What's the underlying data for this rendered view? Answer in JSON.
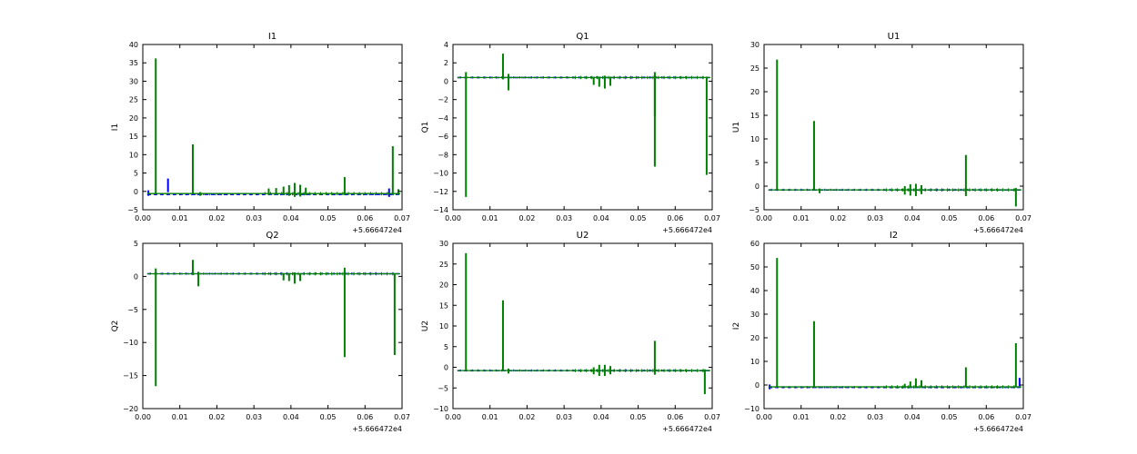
{
  "figure": {
    "background": "#ffffff",
    "series_colors": {
      "A": "#0000ff",
      "B": "#008000"
    }
  },
  "chart_data": [
    {
      "type": "line",
      "title": "I1",
      "ylabel": "I1",
      "offset_text": "+5.666472e4",
      "xlim": [
        0.0,
        0.07
      ],
      "ylim": [
        -5,
        40
      ],
      "xticks": [
        "0.00",
        "0.01",
        "0.02",
        "0.03",
        "0.04",
        "0.05",
        "0.06",
        "0.07"
      ],
      "yticks": [
        "−5",
        "0",
        "5",
        "10",
        "15",
        "20",
        "25",
        "30",
        "35",
        "40"
      ],
      "grid": false,
      "baseline": {
        "A": -0.8,
        "B": -0.6
      },
      "series": [
        {
          "key": "A",
          "spikes": [
            [
              0.0068,
              3.5,
              -0.2
            ],
            [
              0.0015,
              0.3,
              -1.2
            ],
            [
              0.0665,
              0.8,
              -1.5
            ]
          ]
        },
        {
          "key": "B",
          "spikes": [
            [
              0.0035,
              36.2,
              -0.7
            ],
            [
              0.0135,
              12.8,
              -0.8
            ],
            [
              0.0155,
              -0.2,
              -1.2
            ],
            [
              0.034,
              0.8,
              -1.0
            ],
            [
              0.036,
              0.9,
              -1.0
            ],
            [
              0.038,
              1.3,
              -1.0
            ],
            [
              0.0395,
              1.7,
              -1.2
            ],
            [
              0.041,
              2.3,
              -1.5
            ],
            [
              0.0425,
              1.8,
              -1.4
            ],
            [
              0.044,
              1.0,
              -1.0
            ],
            [
              0.0545,
              3.9,
              -1.0
            ],
            [
              0.0675,
              12.3,
              -1.0
            ],
            [
              0.069,
              0.6,
              -1.0
            ]
          ]
        }
      ]
    },
    {
      "type": "line",
      "title": "Q1",
      "ylabel": "Q1",
      "offset_text": "+5.666472e4",
      "xlim": [
        0.0,
        0.07
      ],
      "ylim": [
        -14,
        4
      ],
      "xticks": [
        "0.00",
        "0.01",
        "0.02",
        "0.03",
        "0.04",
        "0.05",
        "0.06",
        "0.07"
      ],
      "yticks": [
        "−14",
        "−12",
        "−10",
        "−8",
        "−6",
        "−4",
        "−2",
        "0",
        "2",
        "4"
      ],
      "grid": false,
      "baseline": {
        "A": 0.4,
        "B": 0.4
      },
      "series": [
        {
          "key": "A",
          "spikes": []
        },
        {
          "key": "B",
          "spikes": [
            [
              0.0035,
              1.0,
              -12.6
            ],
            [
              0.0135,
              3.0,
              0.2
            ],
            [
              0.015,
              0.8,
              -1.0
            ],
            [
              0.038,
              0.4,
              -0.4
            ],
            [
              0.0395,
              0.5,
              -0.6
            ],
            [
              0.041,
              0.6,
              -0.8
            ],
            [
              0.0425,
              0.5,
              -0.5
            ],
            [
              0.0545,
              1.0,
              -9.3
            ],
            [
              0.0545,
              0.6,
              -3.8
            ],
            [
              0.0685,
              0.5,
              -10.2
            ]
          ]
        }
      ]
    },
    {
      "type": "line",
      "title": "U1",
      "ylabel": "U1",
      "offset_text": "+5.666472e4",
      "xlim": [
        0.0,
        0.07
      ],
      "ylim": [
        -5,
        30
      ],
      "xticks": [
        "0.00",
        "0.01",
        "0.02",
        "0.03",
        "0.04",
        "0.05",
        "0.06",
        "0.07"
      ],
      "yticks": [
        "−5",
        "0",
        "5",
        "10",
        "15",
        "20",
        "25",
        "30"
      ],
      "grid": false,
      "baseline": {
        "A": -0.8,
        "B": -0.8
      },
      "series": [
        {
          "key": "A",
          "spikes": []
        },
        {
          "key": "B",
          "spikes": [
            [
              0.0035,
              26.8,
              -0.8
            ],
            [
              0.0135,
              13.8,
              -0.8
            ],
            [
              0.015,
              -0.5,
              -1.5
            ],
            [
              0.038,
              0.0,
              -1.8
            ],
            [
              0.0395,
              0.4,
              -2.0
            ],
            [
              0.041,
              0.5,
              -2.1
            ],
            [
              0.0425,
              0.2,
              -1.7
            ],
            [
              0.0545,
              6.6,
              -2.1
            ],
            [
              0.068,
              -0.4,
              -4.3
            ]
          ]
        }
      ]
    },
    {
      "type": "line",
      "title": "Q2",
      "ylabel": "Q2",
      "offset_text": "+5.666472e4",
      "xlim": [
        0.0,
        0.07
      ],
      "ylim": [
        -20,
        5
      ],
      "xticks": [
        "0.00",
        "0.01",
        "0.02",
        "0.03",
        "0.04",
        "0.05",
        "0.06",
        "0.07"
      ],
      "yticks": [
        "−20",
        "−15",
        "−10",
        "−5",
        "0",
        "5"
      ],
      "grid": false,
      "baseline": {
        "A": 0.4,
        "B": 0.4
      },
      "series": [
        {
          "key": "A",
          "spikes": []
        },
        {
          "key": "B",
          "spikes": [
            [
              0.0035,
              1.2,
              -16.6
            ],
            [
              0.0135,
              2.5,
              0.2
            ],
            [
              0.015,
              0.7,
              -1.5
            ],
            [
              0.038,
              0.4,
              -0.6
            ],
            [
              0.0395,
              0.4,
              -0.7
            ],
            [
              0.041,
              0.6,
              -1.1
            ],
            [
              0.0425,
              0.4,
              -0.7
            ],
            [
              0.0545,
              1.3,
              -12.2
            ],
            [
              0.068,
              0.5,
              -11.9
            ]
          ]
        }
      ]
    },
    {
      "type": "line",
      "title": "U2",
      "ylabel": "U2",
      "offset_text": "+5.666472e4",
      "xlim": [
        0.0,
        0.07
      ],
      "ylim": [
        -10,
        30
      ],
      "xticks": [
        "0.00",
        "0.01",
        "0.02",
        "0.03",
        "0.04",
        "0.05",
        "0.06",
        "0.07"
      ],
      "yticks": [
        "−10",
        "−5",
        "0",
        "5",
        "10",
        "15",
        "20",
        "25",
        "30"
      ],
      "grid": false,
      "baseline": {
        "A": -0.8,
        "B": -0.8
      },
      "series": [
        {
          "key": "A",
          "spikes": []
        },
        {
          "key": "B",
          "spikes": [
            [
              0.0035,
              27.6,
              -0.8
            ],
            [
              0.0135,
              16.2,
              -0.8
            ],
            [
              0.015,
              -0.3,
              -1.5
            ],
            [
              0.038,
              0.0,
              -1.7
            ],
            [
              0.0395,
              0.6,
              -2.1
            ],
            [
              0.041,
              0.6,
              -2.1
            ],
            [
              0.0425,
              0.3,
              -1.7
            ],
            [
              0.0545,
              6.4,
              -1.8
            ],
            [
              0.068,
              -0.5,
              -6.5
            ]
          ]
        }
      ]
    },
    {
      "type": "line",
      "title": "I2",
      "ylabel": "I2",
      "offset_text": "+5.666472e4",
      "xlim": [
        0.0,
        0.07
      ],
      "ylim": [
        -10,
        60
      ],
      "xticks": [
        "0.00",
        "0.01",
        "0.02",
        "0.03",
        "0.04",
        "0.05",
        "0.06",
        "0.07"
      ],
      "yticks": [
        "−10",
        "0",
        "10",
        "20",
        "30",
        "40",
        "50",
        "60"
      ],
      "grid": false,
      "baseline": {
        "A": -1.0,
        "B": -0.8
      },
      "series": [
        {
          "key": "A",
          "spikes": [
            [
              0.069,
              3.0,
              -0.5
            ],
            [
              0.0015,
              0.2,
              -1.8
            ]
          ]
        },
        {
          "key": "B",
          "spikes": [
            [
              0.0035,
              53.8,
              -0.8
            ],
            [
              0.0135,
              27.0,
              -0.8
            ],
            [
              0.038,
              0.5,
              -1.0
            ],
            [
              0.0395,
              1.5,
              -1.2
            ],
            [
              0.041,
              2.8,
              -1.3
            ],
            [
              0.0425,
              2.0,
              -1.2
            ],
            [
              0.0545,
              7.5,
              -1.0
            ],
            [
              0.068,
              17.7,
              -1.0
            ]
          ]
        }
      ]
    }
  ]
}
